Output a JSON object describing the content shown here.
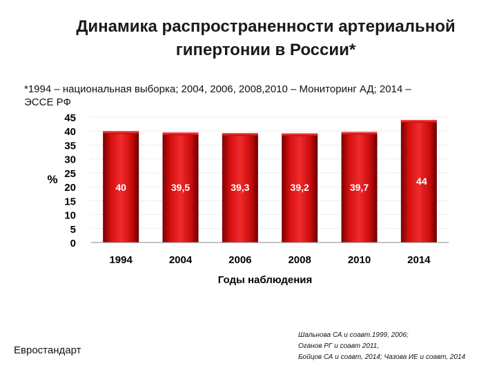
{
  "slide": {
    "title_line1": "Динамика распространенности артериальной",
    "title_line2": "гипертонии в России*",
    "subtitle_line1": "*1994 – национальная выборка; 2004, 2006, 2008,2010 – Мониторинг АД; 2014 –",
    "subtitle_line2": "ЭССЕ РФ",
    "footer_left": "Евростандарт",
    "references": [
      "Шальнова СА и соавт.1999, 2006;",
      "Оганов РГ и соавт 2011,",
      "Бойцов СА и соавт, 2014; Чазова ИЕ и соавт,  2014"
    ]
  },
  "chart_data": {
    "type": "bar",
    "categories": [
      "1994",
      "2004",
      "2006",
      "2008",
      "2010",
      "2014"
    ],
    "values": [
      40,
      39.5,
      39.3,
      39.2,
      39.7,
      44
    ],
    "labels": [
      "40",
      "39,5",
      "39,3",
      "39,2",
      "39,7",
      "44"
    ],
    "xlabel": "Годы наблюдения",
    "ylabel": "%",
    "ylim": [
      0,
      45
    ],
    "yticks": [
      0,
      5,
      10,
      15,
      20,
      25,
      30,
      35,
      40,
      45
    ],
    "bar_color": "#e01818",
    "bar_dark": "#8a0000",
    "grid": true
  }
}
